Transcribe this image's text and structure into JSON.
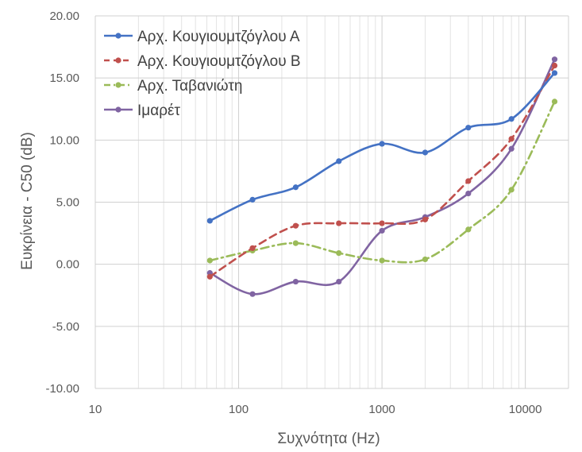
{
  "chart_data": {
    "type": "line",
    "title": "",
    "xlabel": "Συχνότητα (Hz)",
    "ylabel": "Ευκρίνεια - C50 (dB)",
    "xscale": "log",
    "xlim": [
      10,
      20000
    ],
    "ylim": [
      -10,
      20
    ],
    "x_ticks": [
      10,
      100,
      1000,
      10000
    ],
    "x_tick_labels": [
      "10",
      "100",
      "1000",
      "10000"
    ],
    "y_ticks": [
      -10,
      -5,
      0,
      5,
      10,
      15,
      20
    ],
    "y_tick_labels": [
      "-10.00",
      "-5.00",
      "0.00",
      "5.00",
      "10.00",
      "15.00",
      "20.00"
    ],
    "grid": true,
    "legend_position": "top-left",
    "x": [
      63,
      125,
      250,
      500,
      1000,
      2000,
      4000,
      8000,
      16000
    ],
    "series": [
      {
        "name": "Αρχ. Κουγιουμτζόγλου Α",
        "color": "#4472c4",
        "dash": "solid",
        "values": [
          3.5,
          5.2,
          6.2,
          8.3,
          9.7,
          9.0,
          11.0,
          11.7,
          15.4
        ]
      },
      {
        "name": "Αρχ. Κουγιουμτζόγλου Β",
        "color": "#c0504d",
        "dash": "dashed",
        "values": [
          -1.0,
          1.3,
          3.1,
          3.3,
          3.3,
          3.6,
          6.7,
          10.1,
          16.0
        ]
      },
      {
        "name": "Αρχ. Ταβανιώτη",
        "color": "#9bbb59",
        "dash": "dash-dot",
        "values": [
          0.3,
          1.1,
          1.7,
          0.9,
          0.3,
          0.4,
          2.8,
          6.0,
          13.1
        ]
      },
      {
        "name": "Ιμαρέτ",
        "color": "#8064a2",
        "dash": "solid",
        "values": [
          -0.7,
          -2.4,
          -1.4,
          -1.4,
          2.7,
          3.8,
          5.7,
          9.3,
          16.5
        ]
      }
    ]
  }
}
